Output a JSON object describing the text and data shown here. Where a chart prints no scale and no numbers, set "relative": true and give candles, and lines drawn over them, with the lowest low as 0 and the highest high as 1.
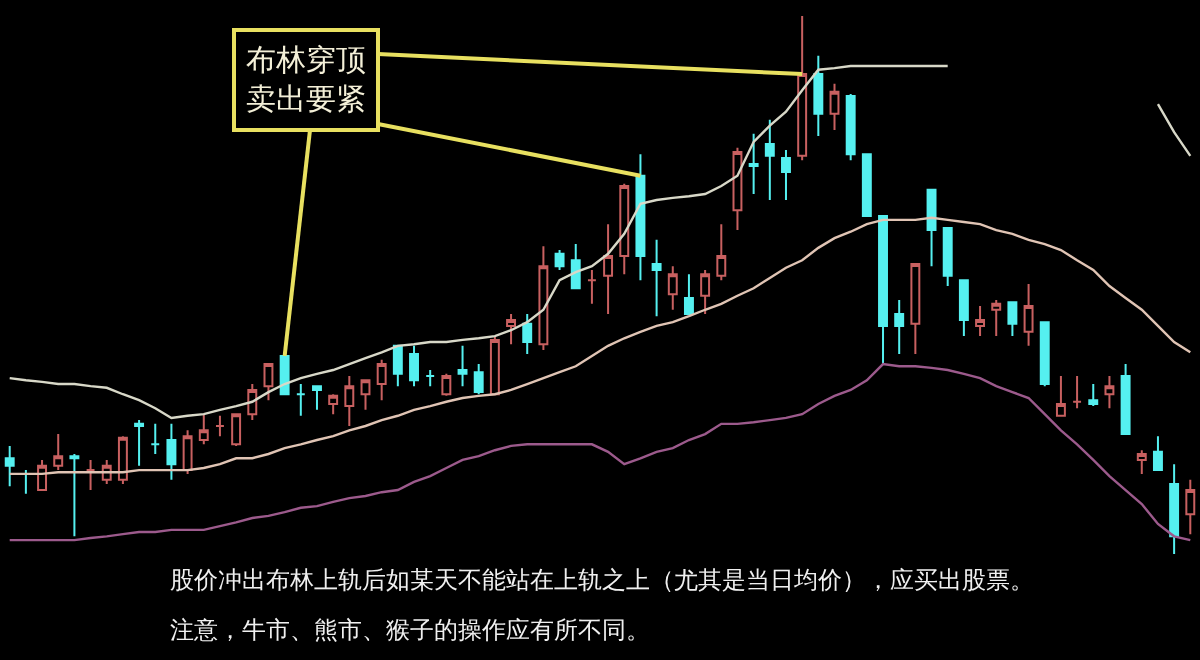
{
  "chart_data": {
    "type": "candlestick",
    "relative": true,
    "annotations": [
      "布林穿顶卖出要紧",
      "股价冲出布林上轨后如某天不能站在上轨之上（尤其是当日均价），应买出股票。",
      "注意，牛市、熊市、猴子的操作应有所不同。"
    ],
    "categories": [
      null,
      null,
      null,
      null,
      null,
      null,
      null,
      null,
      null,
      null,
      null,
      null,
      null,
      null,
      null,
      null,
      null,
      null,
      null,
      null,
      null,
      null,
      null,
      null,
      null,
      null,
      null,
      null,
      null,
      null,
      null,
      null,
      null,
      null,
      null,
      null,
      null,
      null,
      null,
      null,
      null,
      null,
      null,
      null,
      null,
      null,
      null,
      null,
      null,
      null,
      null,
      null,
      null,
      null,
      null,
      null,
      null,
      null,
      null,
      null,
      null,
      null,
      null,
      null,
      null,
      null,
      null,
      null,
      null,
      null,
      null,
      null,
      null,
      null
    ],
    "ohlc": [
      [
        0.178,
        0.201,
        0.126,
        0.164
      ],
      [
        0.149,
        0.156,
        0.112,
        0.149
      ],
      [
        0.119,
        0.175,
        0.119,
        0.164
      ],
      [
        0.164,
        0.223,
        0.156,
        0.182
      ],
      [
        0.182,
        0.186,
        0.033,
        0.178
      ],
      [
        0.156,
        0.175,
        0.119,
        0.156
      ],
      [
        0.138,
        0.175,
        0.13,
        0.164
      ],
      [
        0.138,
        0.219,
        0.13,
        0.216
      ],
      [
        0.242,
        0.249,
        0.164,
        0.238
      ],
      [
        0.204,
        0.242,
        0.186,
        0.204
      ],
      [
        0.212,
        0.242,
        0.138,
        0.167
      ],
      [
        0.156,
        0.23,
        0.149,
        0.219
      ],
      [
        0.212,
        0.26,
        0.204,
        0.23
      ],
      [
        0.238,
        0.257,
        0.219,
        0.238
      ],
      [
        0.204,
        0.26,
        0.201,
        0.26
      ],
      [
        0.26,
        0.316,
        0.249,
        0.305
      ],
      [
        0.312,
        0.353,
        0.286,
        0.353
      ],
      [
        0.368,
        0.372,
        0.297,
        0.297
      ],
      [
        0.297,
        0.316,
        0.257,
        0.297
      ],
      [
        0.312,
        0.312,
        0.268,
        0.305
      ],
      [
        0.279,
        0.297,
        0.26,
        0.294
      ],
      [
        0.275,
        0.331,
        0.238,
        0.312
      ],
      [
        0.297,
        0.323,
        0.268,
        0.323
      ],
      [
        0.316,
        0.361,
        0.286,
        0.353
      ],
      [
        0.387,
        0.387,
        0.312,
        0.335
      ],
      [
        0.372,
        0.387,
        0.312,
        0.323
      ],
      [
        0.331,
        0.342,
        0.312,
        0.331
      ],
      [
        0.297,
        0.335,
        0.294,
        0.331
      ],
      [
        0.342,
        0.387,
        0.312,
        0.335
      ],
      [
        0.338,
        0.353,
        0.297,
        0.301
      ],
      [
        0.297,
        0.405,
        0.297,
        0.398
      ],
      [
        0.424,
        0.446,
        0.39,
        0.435
      ],
      [
        0.428,
        0.446,
        0.372,
        0.394
      ],
      [
        0.39,
        0.572,
        0.379,
        0.535
      ],
      [
        0.558,
        0.565,
        0.528,
        0.535
      ],
      [
        0.546,
        0.576,
        0.494,
        0.494
      ],
      [
        0.509,
        0.528,
        0.465,
        0.509
      ],
      [
        0.517,
        0.613,
        0.446,
        0.554
      ],
      [
        0.554,
        0.688,
        0.52,
        0.684
      ],
      [
        0.703,
        0.743,
        0.509,
        0.554
      ],
      [
        0.539,
        0.584,
        0.442,
        0.528
      ],
      [
        0.483,
        0.535,
        0.454,
        0.52
      ],
      [
        0.476,
        0.52,
        0.446,
        0.446
      ],
      [
        0.48,
        0.528,
        0.446,
        0.52
      ],
      [
        0.517,
        0.613,
        0.509,
        0.554
      ],
      [
        0.639,
        0.755,
        0.602,
        0.747
      ],
      [
        0.725,
        0.781,
        0.669,
        0.721
      ],
      [
        0.762,
        0.807,
        0.658,
        0.74
      ],
      [
        0.736,
        0.751,
        0.658,
        0.71
      ],
      [
        0.74,
        1.0,
        0.732,
        0.892
      ],
      [
        0.892,
        0.926,
        0.777,
        0.818
      ],
      [
        0.818,
        0.874,
        0.788,
        0.859
      ],
      [
        0.851,
        0.855,
        0.732,
        0.743
      ],
      [
        0.743,
        0.743,
        0.628,
        0.628
      ],
      [
        0.628,
        0.628,
        0.353,
        0.424
      ],
      [
        0.446,
        0.472,
        0.372,
        0.424
      ],
      [
        0.428,
        0.539,
        0.372,
        0.539
      ],
      [
        0.677,
        0.677,
        0.535,
        0.602
      ],
      [
        0.606,
        0.606,
        0.498,
        0.517
      ],
      [
        0.509,
        0.509,
        0.405,
        0.435
      ],
      [
        0.424,
        0.461,
        0.405,
        0.435
      ],
      [
        0.454,
        0.472,
        0.405,
        0.465
      ],
      [
        0.468,
        0.468,
        0.405,
        0.428
      ],
      [
        0.413,
        0.502,
        0.387,
        0.461
      ],
      [
        0.431,
        0.431,
        0.312,
        0.316
      ],
      [
        0.257,
        0.331,
        0.257,
        0.279
      ],
      [
        0.283,
        0.331,
        0.271,
        0.283
      ],
      [
        0.286,
        0.316,
        0.275,
        0.279
      ],
      [
        0.297,
        0.331,
        0.271,
        0.312
      ],
      [
        0.331,
        0.353,
        0.223,
        0.223
      ],
      [
        0.175,
        0.193,
        0.149,
        0.186
      ],
      [
        0.19,
        0.219,
        0.156,
        0.156
      ],
      [
        0.13,
        0.167,
        0,
        0.033
      ],
      [
        0.074,
        0.138,
        0.037,
        0.119
      ]
    ],
    "colors": [
      "#55f0f0",
      "#55f0f0",
      "#c86060",
      "#c86060",
      "#55f0f0",
      "#c86060",
      "#c86060",
      "#c86060",
      "#55f0f0",
      "#55f0f0",
      "#55f0f0",
      "#c86060",
      "#c86060",
      "#c86060",
      "#c86060",
      "#c86060",
      "#c86060",
      "#55f0f0",
      "#55f0f0",
      "#55f0f0",
      "#c86060",
      "#c86060",
      "#c86060",
      "#c86060",
      "#55f0f0",
      "#55f0f0",
      "#55f0f0",
      "#c86060",
      "#55f0f0",
      "#55f0f0",
      "#c86060",
      "#c86060",
      "#55f0f0",
      "#c86060",
      "#55f0f0",
      "#55f0f0",
      "#c86060",
      "#c86060",
      "#c86060",
      "#55f0f0",
      "#55f0f0",
      "#c86060",
      "#55f0f0",
      "#c86060",
      "#c86060",
      "#c86060",
      "#55f0f0",
      "#55f0f0",
      "#55f0f0",
      "#c86060",
      "#55f0f0",
      "#c86060",
      "#55f0f0",
      "#55f0f0",
      "#55f0f0",
      "#55f0f0",
      "#c86060",
      "#55f0f0",
      "#55f0f0",
      "#55f0f0",
      "#c86060",
      "#c86060",
      "#55f0f0",
      "#c86060",
      "#55f0f0",
      "#c86060",
      "#c86060",
      "#55f0f0",
      "#c86060",
      "#55f0f0",
      "#c86060",
      "#55f0f0",
      "#55f0f0",
      "#c86060"
    ],
    "series": [
      {
        "type": "line",
        "color": "#d8d8c8",
        "values": [
          0.327,
          0.323,
          0.32,
          0.316,
          0.316,
          0.312,
          0.309,
          0.297,
          0.286,
          0.271,
          0.253,
          0.257,
          0.26,
          0.268,
          0.275,
          0.283,
          0.301,
          0.316,
          0.327,
          0.335,
          0.342,
          0.353,
          0.364,
          0.375,
          0.387,
          0.39,
          0.394,
          0.394,
          0.398,
          0.401,
          0.405,
          0.416,
          0.431,
          0.454,
          0.509,
          0.524,
          0.535,
          0.558,
          0.595,
          0.651,
          0.658,
          0.662,
          0.665,
          0.669,
          0.684,
          0.703,
          0.766,
          0.796,
          0.822,
          0.862,
          0.9,
          0.903,
          0.907,
          0.907,
          0.907,
          0.907,
          0.907,
          0.907,
          0.907,
          null,
          null,
          null,
          null,
          null,
          null,
          null,
          null,
          null,
          null,
          null,
          null,
          0.836,
          0.784,
          0.74
        ]
      },
      {
        "type": "line",
        "color": "#e0c4b4",
        "values": [
          0.149,
          0.149,
          0.149,
          0.152,
          0.152,
          0.152,
          0.152,
          0.152,
          0.156,
          0.156,
          0.156,
          0.156,
          0.16,
          0.167,
          0.178,
          0.178,
          0.186,
          0.197,
          0.204,
          0.212,
          0.219,
          0.23,
          0.238,
          0.249,
          0.257,
          0.268,
          0.275,
          0.283,
          0.29,
          0.294,
          0.297,
          0.305,
          0.316,
          0.327,
          0.338,
          0.349,
          0.368,
          0.387,
          0.401,
          0.413,
          0.424,
          0.431,
          0.442,
          0.454,
          0.465,
          0.48,
          0.494,
          0.513,
          0.532,
          0.546,
          0.569,
          0.587,
          0.599,
          0.613,
          0.621,
          0.621,
          0.621,
          0.625,
          0.621,
          0.617,
          0.613,
          0.602,
          0.595,
          0.584,
          0.576,
          0.565,
          0.546,
          0.528,
          0.498,
          0.476,
          0.454,
          0.424,
          0.394,
          0.375
        ]
      },
      {
        "type": "line",
        "color": "#9c5a8c",
        "values": [
          0.026,
          0.026,
          0.026,
          0.026,
          0.026,
          0.03,
          0.033,
          0.037,
          0.041,
          0.041,
          0.045,
          0.045,
          0.045,
          0.052,
          0.059,
          0.067,
          0.071,
          0.078,
          0.086,
          0.089,
          0.097,
          0.104,
          0.108,
          0.115,
          0.119,
          0.134,
          0.145,
          0.16,
          0.175,
          0.182,
          0.193,
          0.201,
          0.204,
          0.204,
          0.204,
          0.204,
          0.204,
          0.19,
          0.167,
          0.178,
          0.19,
          0.197,
          0.212,
          0.223,
          0.242,
          0.242,
          0.245,
          0.249,
          0.253,
          0.26,
          0.279,
          0.294,
          0.305,
          0.323,
          0.353,
          0.349,
          0.349,
          0.346,
          0.342,
          0.335,
          0.327,
          0.312,
          0.301,
          0.29,
          0.26,
          0.23,
          0.204,
          0.175,
          0.145,
          0.119,
          0.093,
          0.056,
          0.033,
          0.026
        ]
      }
    ]
  }
}
